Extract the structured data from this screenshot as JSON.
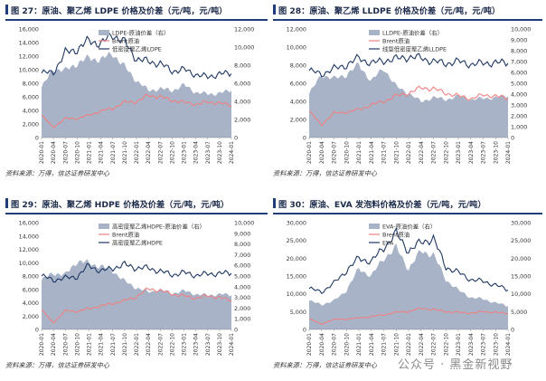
{
  "colors": {
    "brent": "#f08080",
    "product": "#1f3864",
    "spread": "#a8b3c7",
    "rule": "#1f3d7a"
  },
  "watermark": "公众号 · 黑金新视野",
  "chart_data": [
    {
      "type": "line",
      "title": "图 27：原油、聚乙烯 LDPE 价格及价差（元/吨，元/吨）",
      "source": "资料来源：万得，信达证券研发中心",
      "x": [
        "2020-01",
        "2020-04",
        "2020-07",
        "2020-10",
        "2021-01",
        "2021-04",
        "2021-07",
        "2021-10",
        "2022-01",
        "2022-04",
        "2022-07",
        "2022-10",
        "2023-01",
        "2023-04",
        "2023-07",
        "2023-10",
        "2024-01"
      ],
      "ylim_left": [
        0,
        16000
      ],
      "ylim_right": [
        0,
        12000
      ],
      "yticks_left": [
        "16,000",
        "14,000",
        "12,000",
        "10,000",
        "8,000",
        "6,000",
        "4,000",
        "2,000",
        "0"
      ],
      "yticks_right": [
        "12,000",
        "10,000",
        "8,000",
        "6,000",
        "4,000",
        "2,000",
        "0"
      ],
      "legend": [
        "LDPE-原油价差（右）",
        "Brent原油",
        "低密度聚乙烯LDPE"
      ],
      "series": [
        {
          "name": "LDPE-原油价差（右）",
          "axis": "right",
          "kind": "area",
          "values": [
            5500,
            7600,
            7400,
            8200,
            8800,
            8600,
            9300,
            7800,
            6300,
            5200,
            5400,
            5200,
            5800,
            5000,
            4800,
            4900,
            5200
          ]
        },
        {
          "name": "Brent原油",
          "axis": "left",
          "kind": "line",
          "values": [
            3300,
            1500,
            2800,
            2800,
            3300,
            3900,
            4300,
            5200,
            5300,
            6200,
            6000,
            5500,
            5200,
            4900,
            5200,
            5100,
            4700
          ]
        },
        {
          "name": "低密度聚乙烯LDPE",
          "axis": "left",
          "kind": "line",
          "values": [
            9500,
            9600,
            12500,
            13000,
            14300,
            13800,
            15200,
            14000,
            11600,
            11200,
            10900,
            9800,
            10000,
            9300,
            8900,
            9400,
            9400
          ]
        }
      ]
    },
    {
      "type": "line",
      "title": "图 28：原油、聚乙烯 LLDPE 价格及价差（元/吨，元/吨）",
      "source": "资料来源：万得，信达证券研发中心",
      "x": [
        "2020-01",
        "2020-04",
        "2020-07",
        "2020-10",
        "2021-01",
        "2021-04",
        "2021-07",
        "2021-10",
        "2022-01",
        "2022-04",
        "2022-07",
        "2022-10",
        "2023-01",
        "2023-04",
        "2023-07",
        "2023-10",
        "2024-01"
      ],
      "ylim_left": [
        0,
        12000
      ],
      "ylim_right": [
        0,
        10000
      ],
      "yticks_left": [
        "12,000",
        "10,000",
        "8,000",
        "6,000",
        "4,000",
        "2,000",
        "0"
      ],
      "yticks_right": [
        "10,000",
        "9,000",
        "8,000",
        "7,000",
        "6,000",
        "5,000",
        "4,000",
        "3,000",
        "2,000",
        "1,000",
        "0"
      ],
      "legend": [
        "LLDPE-原油价差（右）",
        "Brent原油",
        "线型低密度聚乙烯LLDPE"
      ],
      "series": [
        {
          "name": "LLDPE-原油价差（右）",
          "axis": "right",
          "kind": "area",
          "values": [
            4000,
            5800,
            5400,
            5800,
            6700,
            5200,
            6400,
            4700,
            4100,
            3300,
            3700,
            3500,
            3800,
            3500,
            3600,
            3700,
            3800
          ]
        },
        {
          "name": "Brent原油",
          "axis": "left",
          "kind": "line",
          "values": [
            2900,
            1400,
            2700,
            2800,
            3100,
            3600,
            4000,
            4600,
            4900,
            5500,
            5400,
            4900,
            4600,
            4300,
            4700,
            4600,
            4300
          ]
        },
        {
          "name": "线型低密度聚乙烯LLDPE",
          "axis": "left",
          "kind": "line",
          "values": [
            7400,
            7000,
            7600,
            8000,
            8800,
            8200,
            8500,
            8700,
            8900,
            8800,
            8400,
            8200,
            8400,
            8100,
            8200,
            8300,
            8200
          ]
        }
      ]
    },
    {
      "type": "line",
      "title": "图 29：原油、聚乙烯 HDPE 价格及价差（元/吨，元/吨）",
      "source": "资料来源：万得，信达证券研发中心",
      "x": [
        "2020-01",
        "2020-04",
        "2020-07",
        "2020-10",
        "2021-01",
        "2021-04",
        "2021-07",
        "2021-10",
        "2022-01",
        "2022-04",
        "2022-07",
        "2022-10",
        "2023-01",
        "2023-04",
        "2023-07",
        "2023-10",
        "2024-01"
      ],
      "ylim_left": [
        0,
        16000
      ],
      "ylim_right": [
        0,
        10000
      ],
      "yticks_left": [
        "16,000",
        "14,000",
        "12,000",
        "10,000",
        "8,000",
        "6,000",
        "4,000",
        "2,000",
        "0"
      ],
      "yticks_right": [
        "10,000",
        "9,000",
        "8,000",
        "7,000",
        "6,000",
        "5,000",
        "4,000",
        "3,000",
        "2,000",
        "1,000",
        "0"
      ],
      "legend": [
        "高密度聚乙烯HDPE-原油价差（右）",
        "Brent原油",
        "高密度聚乙烯HDPE"
      ],
      "series": [
        {
          "name": "高密度聚乙烯HDPE-原油价差（右）",
          "axis": "right",
          "kind": "area",
          "values": [
            4600,
            5300,
            5100,
            6400,
            6200,
            5900,
            5500,
            4500,
            3900,
            3500,
            3700,
            3400,
            3600,
            3300,
            3200,
            3300,
            3200
          ]
        },
        {
          "name": "Brent原油",
          "axis": "left",
          "kind": "line",
          "values": [
            2900,
            1000,
            2800,
            2700,
            3100,
            3500,
            3900,
            4300,
            4900,
            6100,
            5800,
            5300,
            5000,
            4700,
            5000,
            4800,
            4300
          ]
        },
        {
          "name": "高密度聚乙烯HDPE",
          "axis": "left",
          "kind": "line",
          "values": [
            8000,
            7400,
            7700,
            7900,
            9600,
            8700,
            9200,
            9700,
            9200,
            9200,
            8700,
            8200,
            8500,
            8100,
            8300,
            8400,
            8400
          ]
        }
      ]
    },
    {
      "type": "line",
      "title": "图 30：原油、EVA 发泡料价格及价差（元/吨，元/吨）",
      "source": "资料来源：万得，信达证券研发中心",
      "x": [
        "2020-01",
        "2020-04",
        "2020-07",
        "2020-10",
        "2021-01",
        "2021-04",
        "2021-07",
        "2021-10",
        "2022-01",
        "2022-04",
        "2022-07",
        "2022-10",
        "2023-01",
        "2023-04",
        "2023-07",
        "2023-10",
        "2024-01"
      ],
      "ylim_left": [
        0,
        30000
      ],
      "ylim_right": [
        0,
        30000
      ],
      "yticks_left": [
        "30,000",
        "25,000",
        "20,000",
        "15,000",
        "10,000",
        "5,000",
        "0"
      ],
      "yticks_right": [
        "30,000",
        "25,000",
        "20,000",
        "15,000",
        "10,000",
        "5,000",
        "0"
      ],
      "legend": [
        "EVA-原油价差（右）",
        "Brent原油",
        "EVA"
      ],
      "series": [
        {
          "name": "EVA-原油价差（右）",
          "axis": "right",
          "kind": "area",
          "values": [
            8000,
            7000,
            8000,
            11000,
            17000,
            15000,
            20000,
            23000,
            17000,
            22000,
            21000,
            14000,
            11000,
            9000,
            8500,
            7500,
            6500
          ]
        },
        {
          "name": "Brent原油",
          "axis": "left",
          "kind": "line",
          "values": [
            3000,
            1500,
            2800,
            2900,
            3200,
            3600,
            4100,
            4800,
            5100,
            5900,
            5600,
            5000,
            4800,
            4600,
            5000,
            4800,
            4400
          ]
        },
        {
          "name": "EVA",
          "axis": "left",
          "kind": "line",
          "values": [
            11500,
            10500,
            13000,
            16500,
            20000,
            19000,
            23000,
            27000,
            22000,
            24500,
            25500,
            17500,
            16000,
            14000,
            13500,
            12500,
            11000
          ]
        }
      ]
    }
  ]
}
